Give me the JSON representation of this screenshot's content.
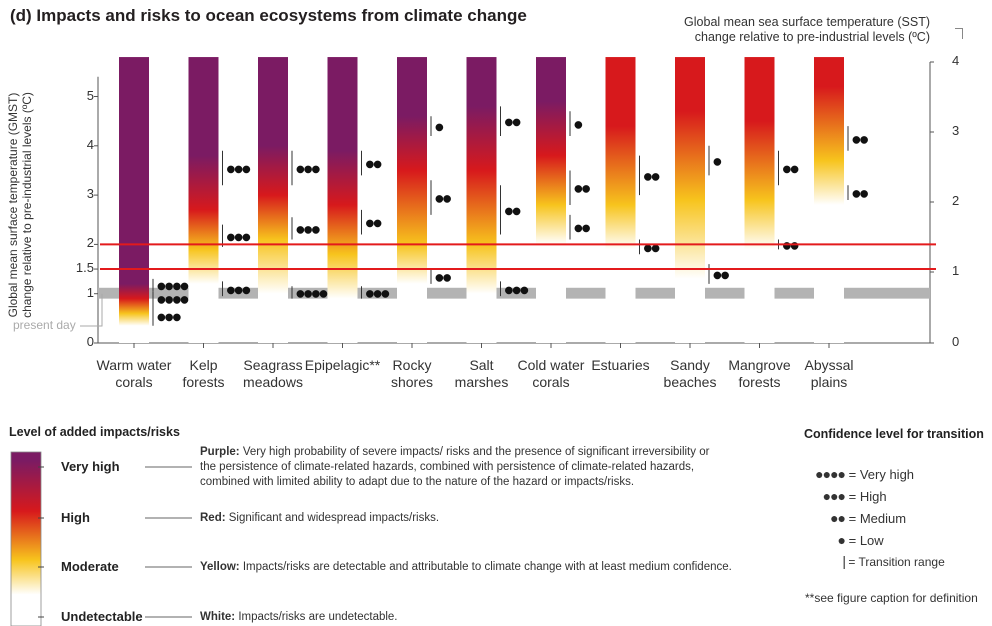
{
  "title": "(d) Impacts and risks to ocean ecosystems from climate change",
  "sst_title": "Global mean sea surface temperature (SST) change relative to pre-industrial levels (ºC)",
  "ylabel": "Global mean surface temperature (GMST) change relative to pre-industrial levels (ºC)",
  "present_day": "present day",
  "colors": {
    "purple": "#7b1b63",
    "red": "#d7191c",
    "yellow": "#f7c41d",
    "white": "#ffffff",
    "hline": "#e31a1c",
    "present": "#b3b3b3"
  },
  "chart_data": {
    "type": "bar",
    "categories": [
      "Warm water corals",
      "Kelp forests",
      "Seagrass meadows",
      "Epipelagic**",
      "Rocky shores",
      "Salt marshes",
      "Cold water corals",
      "Estuaries",
      "Sandy beaches",
      "Mangrove forests",
      "Abyssal plains"
    ],
    "left_axis": {
      "label": "GMST",
      "ticks": [
        "0",
        "1",
        "1.5",
        "2",
        "3",
        "4",
        "5"
      ],
      "range": [
        0,
        5.8
      ]
    },
    "right_axis": {
      "label": "SST",
      "ticks": [
        "0",
        "1",
        "2",
        "3",
        "4"
      ]
    },
    "reference_lines": [
      1.5,
      2.0
    ],
    "present_day_band": [
      0.9,
      1.12
    ],
    "bar_top": 5.8,
    "gradients": [
      [
        [
          0.35,
          "white"
        ],
        [
          0.6,
          "yellow"
        ],
        [
          0.9,
          "red"
        ],
        [
          1.2,
          "purple"
        ]
      ],
      [
        [
          1.2,
          "white"
        ],
        [
          1.9,
          "yellow"
        ],
        [
          2.7,
          "red"
        ],
        [
          3.8,
          "purple"
        ]
      ],
      [
        [
          1.0,
          "white"
        ],
        [
          2.1,
          "yellow"
        ],
        [
          3.0,
          "red"
        ],
        [
          4.0,
          "purple"
        ]
      ],
      [
        [
          0.9,
          "white"
        ],
        [
          1.8,
          "yellow"
        ],
        [
          2.8,
          "red"
        ],
        [
          3.9,
          "purple"
        ]
      ],
      [
        [
          1.2,
          "white"
        ],
        [
          2.0,
          "yellow"
        ],
        [
          3.5,
          "red"
        ],
        [
          4.6,
          "purple"
        ]
      ],
      [
        [
          1.0,
          "white"
        ],
        [
          2.0,
          "yellow"
        ],
        [
          3.5,
          "red"
        ],
        [
          4.8,
          "purple"
        ]
      ],
      [
        [
          2.0,
          "white"
        ],
        [
          2.8,
          "yellow"
        ],
        [
          3.8,
          "red"
        ],
        [
          4.9,
          "purple"
        ]
      ],
      [
        [
          1.9,
          "white"
        ],
        [
          2.8,
          "yellow"
        ],
        [
          4.4,
          "red"
        ],
        [
          5.8,
          "red"
        ]
      ],
      [
        [
          1.3,
          "white"
        ],
        [
          2.9,
          "yellow"
        ],
        [
          4.7,
          "red"
        ],
        [
          5.8,
          "red"
        ]
      ],
      [
        [
          1.9,
          "white"
        ],
        [
          2.9,
          "yellow"
        ],
        [
          4.5,
          "red"
        ],
        [
          5.8,
          "red"
        ]
      ],
      [
        [
          2.8,
          "white"
        ],
        [
          3.7,
          "yellow"
        ],
        [
          5.2,
          "red"
        ],
        [
          5.8,
          "red"
        ]
      ]
    ],
    "transitions": [
      [
        {
          "from": 0.35,
          "to": 0.75,
          "dots": "●●●"
        },
        {
          "from": 0.75,
          "to": 1.05,
          "dots": "●●●●"
        },
        {
          "from": 1.05,
          "to": 1.3,
          "dots": "●●●●"
        }
      ],
      [
        {
          "from": 0.95,
          "to": 1.25,
          "dots": "●●●"
        },
        {
          "from": 1.95,
          "to": 2.4,
          "dots": "●●●"
        },
        {
          "from": 3.2,
          "to": 3.9,
          "dots": "●●●"
        }
      ],
      [
        {
          "from": 0.9,
          "to": 1.15,
          "dots": "●●●●"
        },
        {
          "from": 2.1,
          "to": 2.55,
          "dots": "●●●"
        },
        {
          "from": 3.2,
          "to": 3.9,
          "dots": "●●●"
        }
      ],
      [
        {
          "from": 0.9,
          "to": 1.15,
          "dots": "●●●"
        },
        {
          "from": 2.2,
          "to": 2.7,
          "dots": "●●"
        },
        {
          "from": 3.4,
          "to": 3.9,
          "dots": "●●"
        }
      ],
      [
        {
          "from": 1.2,
          "to": 1.5,
          "dots": "●●"
        },
        {
          "from": 2.6,
          "to": 3.3,
          "dots": "●●"
        },
        {
          "from": 4.2,
          "to": 4.6,
          "dots": "●"
        }
      ],
      [
        {
          "from": 0.95,
          "to": 1.25,
          "dots": "●●●"
        },
        {
          "from": 2.2,
          "to": 3.2,
          "dots": "●●"
        },
        {
          "from": 4.2,
          "to": 4.8,
          "dots": "●●"
        }
      ],
      [
        {
          "from": 2.1,
          "to": 2.6,
          "dots": "●●"
        },
        {
          "from": 2.8,
          "to": 3.5,
          "dots": "●●"
        },
        {
          "from": 4.2,
          "to": 4.7,
          "dots": "●"
        }
      ],
      [
        {
          "from": 1.8,
          "to": 2.1,
          "dots": "●●"
        },
        {
          "from": 3.0,
          "to": 3.8,
          "dots": "●●"
        }
      ],
      [
        {
          "from": 1.2,
          "to": 1.6,
          "dots": "●●"
        },
        {
          "from": 3.4,
          "to": 4.0,
          "dots": "●"
        }
      ],
      [
        {
          "from": 1.9,
          "to": 2.1,
          "dots": "●●"
        },
        {
          "from": 3.2,
          "to": 3.9,
          "dots": "●●"
        }
      ],
      [
        {
          "from": 2.9,
          "to": 3.2,
          "dots": "●●"
        },
        {
          "from": 3.9,
          "to": 4.4,
          "dots": "●●"
        }
      ]
    ]
  },
  "legend": {
    "title": "Level of added impacts/risks",
    "levels": [
      {
        "label": "Very high",
        "name": "Purple:",
        "text": "Very high probability of severe impacts/ risks and the presence of significant irreversibility or the persistence of climate-related hazards, combined with persistence of climate-related hazards, combined with limited ability to adapt due to the nature of the hazard or impacts/risks."
      },
      {
        "label": "High",
        "name": "Red:",
        "text": "Significant and widespread impacts/risks."
      },
      {
        "label": "Moderate",
        "name": "Yellow:",
        "text": "Impacts/risks are detectable and attributable to climate change with at least medium confidence."
      },
      {
        "label": "Undetectable",
        "name": "White:",
        "text": "Impacts/risks are undetectable."
      }
    ]
  },
  "confidence": {
    "title": "Confidence level for transition",
    "items": [
      {
        "dots": "●●●●",
        "label": "= Very high"
      },
      {
        "dots": "●●●",
        "label": "= High"
      },
      {
        "dots": "●●",
        "label": "= Medium"
      },
      {
        "dots": "●",
        "label": "= Low"
      },
      {
        "dots": "|",
        "label": "= Transition range"
      }
    ],
    "footnote": "**see figure caption for definition"
  }
}
